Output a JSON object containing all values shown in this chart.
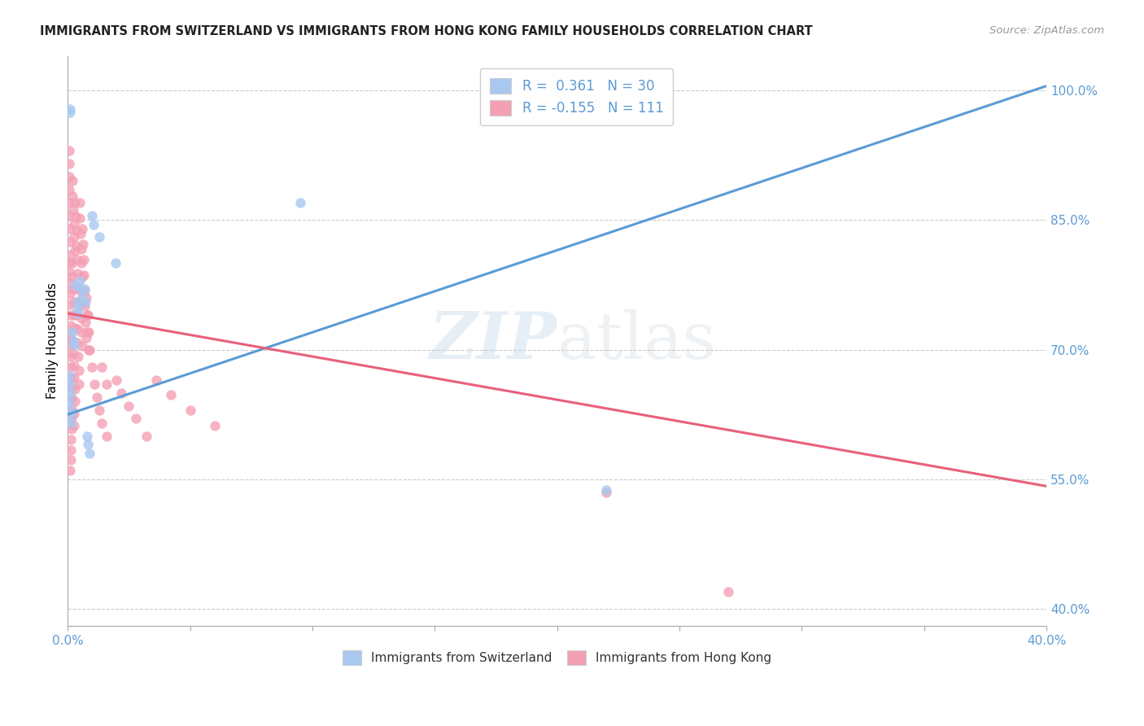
{
  "title": "IMMIGRANTS FROM SWITZERLAND VS IMMIGRANTS FROM HONG KONG FAMILY HOUSEHOLDS CORRELATION CHART",
  "source": "Source: ZipAtlas.com",
  "ylabel": "Family Households",
  "ylabel_right_values": [
    0.4,
    0.55,
    0.7,
    0.85,
    1.0
  ],
  "ylabel_right_labels": [
    "40.0%",
    "55.0%",
    "70.0%",
    "85.0%",
    "100.0%"
  ],
  "watermark_zip": "ZIP",
  "watermark_atlas": "atlas",
  "color_blue": "#A8C8F0",
  "color_pink": "#F4A0B4",
  "color_blue_line": "#5B9BD5",
  "color_pink_line": "#E8607A",
  "swiss_scatter": [
    [
      0.0008,
      0.975
    ],
    [
      0.001,
      0.978
    ],
    [
      0.0006,
      0.67
    ],
    [
      0.0008,
      0.66
    ],
    [
      0.0009,
      0.65
    ],
    [
      0.0007,
      0.64
    ],
    [
      0.001,
      0.63
    ],
    [
      0.0011,
      0.625
    ],
    [
      0.0012,
      0.615
    ],
    [
      0.0018,
      0.72
    ],
    [
      0.0022,
      0.71
    ],
    [
      0.0025,
      0.705
    ],
    [
      0.003,
      0.775
    ],
    [
      0.004,
      0.755
    ],
    [
      0.0038,
      0.748
    ],
    [
      0.0042,
      0.742
    ],
    [
      0.0048,
      0.78
    ],
    [
      0.0052,
      0.77
    ],
    [
      0.006,
      0.76
    ],
    [
      0.0068,
      0.77
    ],
    [
      0.0072,
      0.755
    ],
    [
      0.008,
      0.6
    ],
    [
      0.0082,
      0.59
    ],
    [
      0.009,
      0.58
    ],
    [
      0.01,
      0.855
    ],
    [
      0.0105,
      0.845
    ],
    [
      0.013,
      0.83
    ],
    [
      0.0195,
      0.8
    ],
    [
      0.095,
      0.87
    ],
    [
      0.22,
      0.538
    ]
  ],
  "hk_scatter": [
    [
      0.0005,
      0.93
    ],
    [
      0.0006,
      0.915
    ],
    [
      0.0007,
      0.9
    ],
    [
      0.0005,
      0.885
    ],
    [
      0.0006,
      0.87
    ],
    [
      0.0007,
      0.855
    ],
    [
      0.0008,
      0.84
    ],
    [
      0.0009,
      0.825
    ],
    [
      0.001,
      0.81
    ],
    [
      0.0006,
      0.8
    ],
    [
      0.0007,
      0.79
    ],
    [
      0.0008,
      0.778
    ],
    [
      0.0009,
      0.765
    ],
    [
      0.001,
      0.752
    ],
    [
      0.0011,
      0.74
    ],
    [
      0.0012,
      0.728
    ],
    [
      0.0008,
      0.716
    ],
    [
      0.0009,
      0.704
    ],
    [
      0.001,
      0.692
    ],
    [
      0.0011,
      0.68
    ],
    [
      0.0012,
      0.668
    ],
    [
      0.0013,
      0.656
    ],
    [
      0.0014,
      0.644
    ],
    [
      0.0015,
      0.632
    ],
    [
      0.0016,
      0.62
    ],
    [
      0.0014,
      0.608
    ],
    [
      0.0013,
      0.596
    ],
    [
      0.0012,
      0.584
    ],
    [
      0.0011,
      0.572
    ],
    [
      0.001,
      0.56
    ],
    [
      0.0018,
      0.895
    ],
    [
      0.002,
      0.878
    ],
    [
      0.0022,
      0.862
    ],
    [
      0.0024,
      0.846
    ],
    [
      0.0026,
      0.83
    ],
    [
      0.0028,
      0.814
    ],
    [
      0.0018,
      0.8
    ],
    [
      0.002,
      0.784
    ],
    [
      0.0022,
      0.77
    ],
    [
      0.0024,
      0.755
    ],
    [
      0.0026,
      0.74
    ],
    [
      0.0028,
      0.725
    ],
    [
      0.002,
      0.71
    ],
    [
      0.0022,
      0.696
    ],
    [
      0.0024,
      0.682
    ],
    [
      0.0026,
      0.668
    ],
    [
      0.0028,
      0.654
    ],
    [
      0.003,
      0.64
    ],
    [
      0.0025,
      0.626
    ],
    [
      0.0027,
      0.612
    ],
    [
      0.003,
      0.87
    ],
    [
      0.0032,
      0.854
    ],
    [
      0.0034,
      0.838
    ],
    [
      0.0036,
      0.82
    ],
    [
      0.0038,
      0.804
    ],
    [
      0.004,
      0.788
    ],
    [
      0.0042,
      0.772
    ],
    [
      0.0044,
      0.756
    ],
    [
      0.0036,
      0.74
    ],
    [
      0.0038,
      0.724
    ],
    [
      0.004,
      0.708
    ],
    [
      0.0042,
      0.692
    ],
    [
      0.0044,
      0.676
    ],
    [
      0.0046,
      0.66
    ],
    [
      0.0048,
      0.87
    ],
    [
      0.005,
      0.852
    ],
    [
      0.0052,
      0.834
    ],
    [
      0.0054,
      0.816
    ],
    [
      0.0056,
      0.8
    ],
    [
      0.0058,
      0.784
    ],
    [
      0.005,
      0.768
    ],
    [
      0.0052,
      0.752
    ],
    [
      0.0054,
      0.736
    ],
    [
      0.0056,
      0.72
    ],
    [
      0.0058,
      0.704
    ],
    [
      0.006,
      0.84
    ],
    [
      0.0062,
      0.822
    ],
    [
      0.0064,
      0.804
    ],
    [
      0.0066,
      0.786
    ],
    [
      0.0068,
      0.768
    ],
    [
      0.007,
      0.75
    ],
    [
      0.0072,
      0.732
    ],
    [
      0.0074,
      0.714
    ],
    [
      0.0076,
      0.76
    ],
    [
      0.0078,
      0.74
    ],
    [
      0.008,
      0.72
    ],
    [
      0.0082,
      0.74
    ],
    [
      0.0084,
      0.72
    ],
    [
      0.0086,
      0.7
    ],
    [
      0.009,
      0.7
    ],
    [
      0.01,
      0.68
    ],
    [
      0.011,
      0.66
    ],
    [
      0.012,
      0.645
    ],
    [
      0.013,
      0.63
    ],
    [
      0.014,
      0.615
    ],
    [
      0.016,
      0.6
    ],
    [
      0.02,
      0.665
    ],
    [
      0.022,
      0.65
    ],
    [
      0.025,
      0.635
    ],
    [
      0.014,
      0.68
    ],
    [
      0.016,
      0.66
    ],
    [
      0.028,
      0.62
    ],
    [
      0.032,
      0.6
    ],
    [
      0.036,
      0.665
    ],
    [
      0.042,
      0.648
    ],
    [
      0.05,
      0.63
    ],
    [
      0.06,
      0.612
    ],
    [
      0.22,
      0.535
    ],
    [
      0.27,
      0.42
    ]
  ],
  "swiss_line_x": [
    0.0,
    0.4
  ],
  "swiss_line_y": [
    0.625,
    1.005
  ],
  "hk_line_x": [
    0.0,
    0.4
  ],
  "hk_line_y": [
    0.742,
    0.542
  ],
  "xmin": 0.0,
  "xmax": 0.4,
  "ymin": 0.38,
  "ymax": 1.04,
  "xticks": [
    0.0,
    0.05,
    0.1,
    0.15,
    0.2,
    0.25,
    0.3,
    0.35,
    0.4
  ],
  "xtick_labels_show": [
    true,
    false,
    false,
    false,
    false,
    false,
    false,
    false,
    true
  ]
}
